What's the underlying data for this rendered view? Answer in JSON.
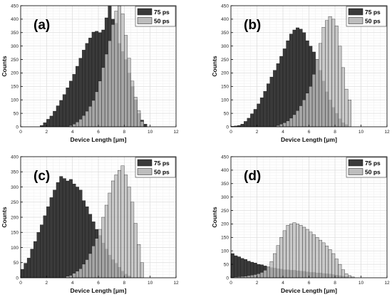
{
  "colors": {
    "series_75ps": "#3a3a3a",
    "series_50ps": "#bdbdbd",
    "edge": "#111111",
    "axis": "#000000",
    "grid": "#dcdcdc"
  },
  "chart_data": [
    {
      "type": "bar",
      "subtype": "histogram-overlay",
      "panel_label": "(a)",
      "xlabel": "Device Length [μm]",
      "ylabel": "Counts",
      "xlim": [
        0,
        12
      ],
      "ylim": [
        0,
        450
      ],
      "xticks": [
        0,
        2,
        4,
        6,
        8,
        10,
        12
      ],
      "yticks": [
        0,
        50,
        100,
        150,
        200,
        250,
        300,
        350,
        400,
        450
      ],
      "grid": true,
      "legend": "top-right",
      "bin_width": 0.25,
      "series": [
        {
          "name": "75 ps",
          "x_start": 1.5,
          "values": [
            5,
            15,
            28,
            40,
            58,
            78,
            98,
            120,
            145,
            170,
            195,
            225,
            255,
            285,
            310,
            330,
            352,
            355,
            350,
            360,
            405,
            448,
            400,
            385,
            310,
            280,
            250,
            200,
            150,
            100,
            50,
            25,
            10
          ]
        },
        {
          "name": "50 ps",
          "x_start": 3.75,
          "values": [
            5,
            10,
            18,
            28,
            42,
            58,
            76,
            98,
            130,
            170,
            220,
            270,
            320,
            380,
            430,
            450,
            420,
            340,
            255,
            170,
            110,
            60,
            20
          ]
        }
      ]
    },
    {
      "type": "bar",
      "subtype": "histogram-overlay",
      "panel_label": "(b)",
      "xlabel": "Device Length [μm]",
      "ylabel": "Counts",
      "xlim": [
        0,
        12
      ],
      "ylim": [
        0,
        450
      ],
      "xticks": [
        0,
        2,
        4,
        6,
        8,
        10,
        12
      ],
      "yticks": [
        0,
        50,
        100,
        150,
        200,
        250,
        300,
        350,
        400,
        450
      ],
      "grid": true,
      "legend": "top-right",
      "bin_width": 0.25,
      "series": [
        {
          "name": "75 ps",
          "x_start": 0.0,
          "values": [
            2,
            3,
            5,
            10,
            20,
            32,
            48,
            65,
            85,
            108,
            132,
            160,
            185,
            210,
            235,
            262,
            290,
            320,
            345,
            360,
            368,
            363,
            350,
            320,
            300,
            278,
            250,
            210,
            170,
            130,
            100,
            72,
            50,
            30,
            15,
            8
          ]
        },
        {
          "name": "50 ps",
          "x_start": 3.5,
          "values": [
            5,
            10,
            15,
            22,
            32,
            45,
            60,
            78,
            100,
            125,
            150,
            195,
            250,
            310,
            370,
            395,
            410,
            400,
            375,
            300,
            220,
            140,
            100
          ]
        }
      ]
    },
    {
      "type": "bar",
      "subtype": "histogram-overlay",
      "panel_label": "(c)",
      "xlabel": "Device Length [μm]",
      "ylabel": "Counts",
      "xlim": [
        0,
        12
      ],
      "ylim": [
        0,
        400
      ],
      "xticks": [
        0,
        2,
        4,
        6,
        8,
        10,
        12
      ],
      "yticks": [
        0,
        50,
        100,
        150,
        200,
        250,
        300,
        350,
        400
      ],
      "grid": true,
      "legend": "top-right",
      "bin_width": 0.25,
      "series": [
        {
          "name": "75 ps",
          "x_start": 0.0,
          "values": [
            28,
            48,
            65,
            95,
            120,
            150,
            175,
            205,
            235,
            265,
            290,
            315,
            335,
            328,
            320,
            325,
            310,
            300,
            290,
            255,
            235,
            210,
            185,
            160,
            140,
            115,
            95,
            75,
            60,
            48,
            35,
            22,
            12,
            6
          ]
        },
        {
          "name": "50 ps",
          "x_start": 3.5,
          "values": [
            5,
            8,
            15,
            22,
            30,
            45,
            60,
            80,
            105,
            130,
            160,
            200,
            240,
            280,
            320,
            340,
            355,
            370,
            340,
            300,
            250,
            180,
            110,
            50
          ]
        }
      ]
    },
    {
      "type": "bar",
      "subtype": "histogram-overlay",
      "panel_label": "(d)",
      "xlabel": "Device Length [μm]",
      "ylabel": "Counts",
      "xlim": [
        0,
        12
      ],
      "ylim": [
        0,
        450
      ],
      "xticks": [
        0,
        2,
        4,
        6,
        8,
        10,
        12
      ],
      "yticks": [
        0,
        50,
        100,
        150,
        200,
        250,
        300,
        350,
        400,
        450
      ],
      "grid": true,
      "legend": "top-right",
      "bin_width": 0.25,
      "series": [
        {
          "name": "75 ps",
          "x_start": 0.0,
          "values": [
            90,
            82,
            78,
            72,
            68,
            62,
            58,
            55,
            50,
            48,
            44,
            40,
            38,
            36,
            34,
            32,
            30,
            30,
            28,
            28,
            26,
            25,
            24,
            22,
            20,
            20,
            18,
            18,
            16,
            15,
            14,
            12,
            10,
            8,
            6,
            4
          ]
        },
        {
          "name": "50 ps",
          "x_start": 0.0,
          "values": [
            2,
            3,
            4,
            5,
            6,
            8,
            10,
            12,
            15,
            20,
            28,
            40,
            60,
            90,
            120,
            150,
            175,
            195,
            200,
            205,
            200,
            195,
            188,
            180,
            170,
            160,
            150,
            140,
            130,
            118,
            105,
            90,
            70,
            50,
            30,
            15,
            8,
            3
          ]
        }
      ]
    }
  ]
}
